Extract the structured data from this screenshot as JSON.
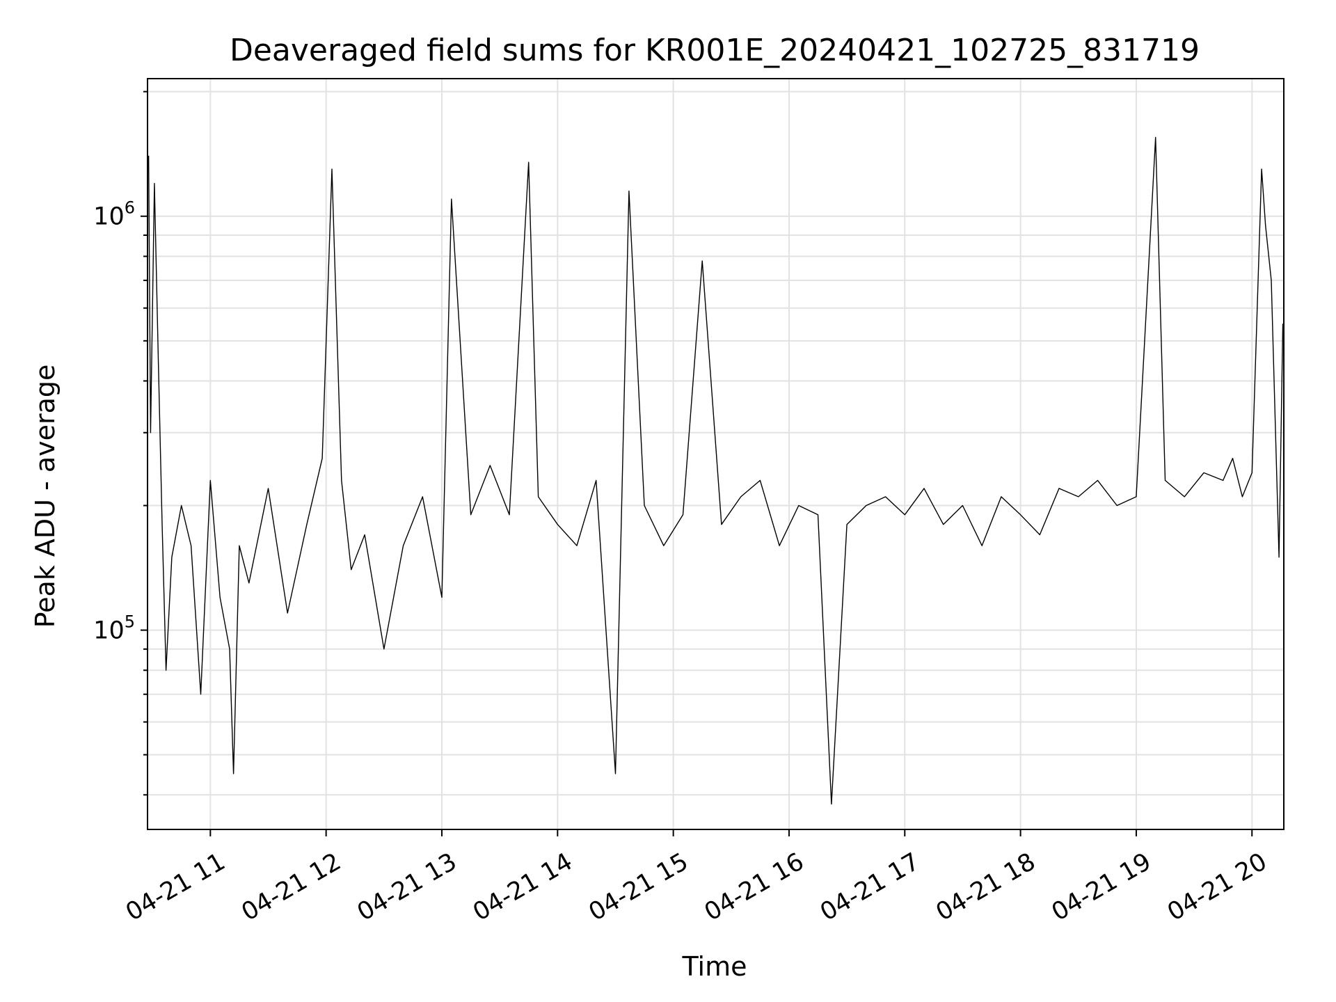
{
  "chart_data": {
    "type": "line",
    "title": "Deaveraged field sums for KR001E_20240421_102725_831719",
    "xlabel": "Time",
    "ylabel": "Peak ADU - average",
    "yscale": "log",
    "ylim": [
      33000,
      2150000
    ],
    "xlim": [
      "2024-04-21T10:27:25",
      "2024-04-21T20:16:30"
    ],
    "grid": true,
    "line_color": "#000000",
    "x_ticks": [
      {
        "label": "04-21 11",
        "value": "2024-04-21T11:00:00"
      },
      {
        "label": "04-21 12",
        "value": "2024-04-21T12:00:00"
      },
      {
        "label": "04-21 13",
        "value": "2024-04-21T13:00:00"
      },
      {
        "label": "04-21 14",
        "value": "2024-04-21T14:00:00"
      },
      {
        "label": "04-21 15",
        "value": "2024-04-21T15:00:00"
      },
      {
        "label": "04-21 16",
        "value": "2024-04-21T16:00:00"
      },
      {
        "label": "04-21 17",
        "value": "2024-04-21T17:00:00"
      },
      {
        "label": "04-21 18",
        "value": "2024-04-21T18:00:00"
      },
      {
        "label": "04-21 19",
        "value": "2024-04-21T19:00:00"
      },
      {
        "label": "04-21 20",
        "value": "2024-04-21T20:00:00"
      }
    ],
    "y_ticks": [
      {
        "base": "10",
        "exp": "5",
        "value": 100000
      },
      {
        "base": "10",
        "exp": "6",
        "value": 1000000
      }
    ],
    "series": [
      {
        "x": [
          "2024-04-21T10:28:00",
          "2024-04-21T10:29:00",
          "2024-04-21T10:31:00",
          "2024-04-21T10:33:00",
          "2024-04-21T10:35:00",
          "2024-04-21T10:37:00",
          "2024-04-21T10:40:00",
          "2024-04-21T10:45:00",
          "2024-04-21T10:50:00",
          "2024-04-21T10:55:00",
          "2024-04-21T11:00:00",
          "2024-04-21T11:05:00",
          "2024-04-21T11:10:00",
          "2024-04-21T11:12:00",
          "2024-04-21T11:15:00",
          "2024-04-21T11:20:00",
          "2024-04-21T11:30:00",
          "2024-04-21T11:40:00",
          "2024-04-21T11:50:00",
          "2024-04-21T11:58:00",
          "2024-04-21T12:03:00",
          "2024-04-21T12:08:00",
          "2024-04-21T12:13:00",
          "2024-04-21T12:20:00",
          "2024-04-21T12:30:00",
          "2024-04-21T12:40:00",
          "2024-04-21T12:50:00",
          "2024-04-21T13:00:00",
          "2024-04-21T13:05:00",
          "2024-04-21T13:15:00",
          "2024-04-21T13:25:00",
          "2024-04-21T13:35:00",
          "2024-04-21T13:45:00",
          "2024-04-21T13:50:00",
          "2024-04-21T14:00:00",
          "2024-04-21T14:10:00",
          "2024-04-21T14:20:00",
          "2024-04-21T14:30:00",
          "2024-04-21T14:37:00",
          "2024-04-21T14:45:00",
          "2024-04-21T14:55:00",
          "2024-04-21T15:05:00",
          "2024-04-21T15:15:00",
          "2024-04-21T15:25:00",
          "2024-04-21T15:35:00",
          "2024-04-21T15:45:00",
          "2024-04-21T15:55:00",
          "2024-04-21T16:05:00",
          "2024-04-21T16:15:00",
          "2024-04-21T16:22:00",
          "2024-04-21T16:30:00",
          "2024-04-21T16:40:00",
          "2024-04-21T16:50:00",
          "2024-04-21T17:00:00",
          "2024-04-21T17:10:00",
          "2024-04-21T17:20:00",
          "2024-04-21T17:30:00",
          "2024-04-21T17:40:00",
          "2024-04-21T17:50:00",
          "2024-04-21T18:00:00",
          "2024-04-21T18:10:00",
          "2024-04-21T18:20:00",
          "2024-04-21T18:30:00",
          "2024-04-21T18:40:00",
          "2024-04-21T18:50:00",
          "2024-04-21T19:00:00",
          "2024-04-21T19:10:00",
          "2024-04-21T19:15:00",
          "2024-04-21T19:25:00",
          "2024-04-21T19:35:00",
          "2024-04-21T19:45:00",
          "2024-04-21T19:50:00",
          "2024-04-21T19:55:00",
          "2024-04-21T20:00:00",
          "2024-04-21T20:05:00",
          "2024-04-21T20:07:00",
          "2024-04-21T20:10:00",
          "2024-04-21T20:14:00",
          "2024-04-21T20:16:00"
        ],
        "y": [
          1400000,
          300000,
          1200000,
          450000,
          180000,
          80000,
          150000,
          200000,
          160000,
          70000,
          230000,
          120000,
          90000,
          45000,
          160000,
          130000,
          220000,
          110000,
          180000,
          260000,
          1300000,
          230000,
          140000,
          170000,
          90000,
          160000,
          210000,
          120000,
          1100000,
          190000,
          250000,
          190000,
          1350000,
          210000,
          180000,
          160000,
          230000,
          45000,
          1150000,
          200000,
          160000,
          190000,
          780000,
          180000,
          210000,
          230000,
          160000,
          200000,
          190000,
          38000,
          180000,
          200000,
          210000,
          190000,
          220000,
          180000,
          200000,
          160000,
          210000,
          190000,
          170000,
          220000,
          210000,
          230000,
          200000,
          210000,
          1550000,
          230000,
          210000,
          240000,
          230000,
          260000,
          210000,
          240000,
          1300000,
          950000,
          700000,
          150000,
          550000
        ]
      }
    ]
  }
}
